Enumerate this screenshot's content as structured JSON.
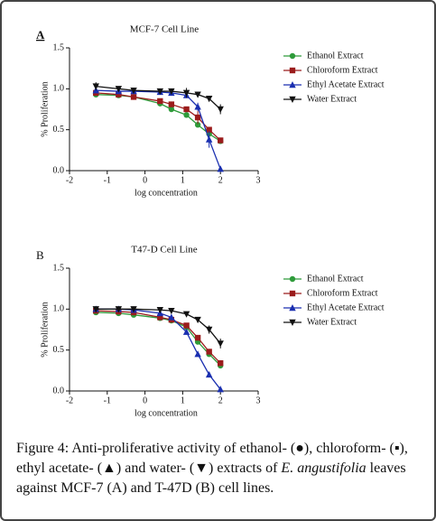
{
  "chart_data": [
    {
      "type": "line",
      "panel_label": "A",
      "title": "MCF-7 Cell Line",
      "xlabel": "log concentration",
      "ylabel": "% Proliferation",
      "x": [
        -1.3,
        -0.7,
        -0.3,
        0.4,
        0.7,
        1.1,
        1.4,
        1.7,
        2.0
      ],
      "xlim": [
        -2,
        3
      ],
      "xticks": [
        -2,
        -1,
        0,
        1,
        2,
        3
      ],
      "ylim": [
        0,
        1.5
      ],
      "yticks": [
        {
          "value": 0,
          "label": "0.0"
        },
        0.5,
        {
          "value": 1,
          "label": "1.0"
        },
        1.5
      ],
      "series": [
        {
          "name": "Ethanol Extract",
          "color": "#2e9b3a",
          "marker": "circle",
          "values": [
            0.93,
            0.92,
            0.9,
            0.82,
            0.75,
            0.68,
            0.56,
            0.45,
            0.36
          ],
          "errors": [
            0.02,
            0.02,
            0.02,
            0.02,
            0.02,
            0.03,
            0.03,
            0.03,
            0.02
          ]
        },
        {
          "name": "Chloroform Extract",
          "color": "#9b1c1c",
          "marker": "square",
          "values": [
            0.95,
            0.93,
            0.9,
            0.85,
            0.81,
            0.75,
            0.65,
            0.5,
            0.37
          ],
          "errors": [
            0.02,
            0.02,
            0.02,
            0.02,
            0.02,
            0.03,
            0.08,
            0.03,
            0.02
          ]
        },
        {
          "name": "Ethyl Acetate Extract",
          "color": "#1a2fb0",
          "marker": "triangle-up",
          "values": [
            0.98,
            0.97,
            0.97,
            0.96,
            0.95,
            0.92,
            0.78,
            0.38,
            0.02
          ],
          "errors": [
            0.02,
            0.02,
            0.02,
            0.02,
            0.02,
            0.03,
            0.05,
            0.1,
            0.01
          ]
        },
        {
          "name": "Water Extract",
          "color": "#111111",
          "marker": "triangle-down",
          "values": [
            1.03,
            1.0,
            0.98,
            0.97,
            0.97,
            0.95,
            0.93,
            0.88,
            0.75
          ],
          "errors": [
            0.05,
            0.02,
            0.02,
            0.02,
            0.02,
            0.06,
            0.03,
            0.03,
            0.06
          ]
        }
      ]
    },
    {
      "type": "line",
      "panel_label": "B",
      "title": "T47-D Cell Line",
      "xlabel": "log concentration",
      "ylabel": "% Proliferation",
      "x": [
        -1.3,
        -0.7,
        -0.3,
        0.4,
        0.7,
        1.1,
        1.4,
        1.7,
        2.0
      ],
      "xlim": [
        -2,
        3
      ],
      "xticks": [
        -2,
        -1,
        0,
        1,
        2,
        3
      ],
      "ylim": [
        0,
        1.5
      ],
      "yticks": [
        {
          "value": 0,
          "label": "0.0"
        },
        0.5,
        {
          "value": 1,
          "label": "1.0"
        },
        1.5
      ],
      "series": [
        {
          "name": "Ethanol Extract",
          "color": "#2e9b3a",
          "marker": "circle",
          "values": [
            0.96,
            0.95,
            0.93,
            0.89,
            0.86,
            0.78,
            0.6,
            0.45,
            0.31
          ],
          "errors": [
            0.02,
            0.02,
            0.02,
            0.02,
            0.02,
            0.02,
            0.03,
            0.03,
            0.02
          ]
        },
        {
          "name": "Chloroform Extract",
          "color": "#9b1c1c",
          "marker": "square",
          "values": [
            0.98,
            0.97,
            0.96,
            0.9,
            0.87,
            0.8,
            0.65,
            0.48,
            0.34
          ],
          "errors": [
            0.02,
            0.02,
            0.02,
            0.02,
            0.02,
            0.02,
            0.03,
            0.03,
            0.02
          ]
        },
        {
          "name": "Ethyl Acetate Extract",
          "color": "#1a2fb0",
          "marker": "triangle-up",
          "values": [
            1.0,
            1.0,
            0.99,
            0.95,
            0.9,
            0.72,
            0.45,
            0.2,
            0.02
          ],
          "errors": [
            0.02,
            0.02,
            0.02,
            0.02,
            0.02,
            0.02,
            0.02,
            0.03,
            0.01
          ]
        },
        {
          "name": "Water Extract",
          "color": "#111111",
          "marker": "triangle-down",
          "values": [
            1.0,
            1.0,
            1.0,
            0.99,
            0.98,
            0.94,
            0.87,
            0.75,
            0.58
          ],
          "errors": [
            0.02,
            0.02,
            0.02,
            0.03,
            0.03,
            0.03,
            0.03,
            0.05,
            0.06
          ]
        }
      ]
    }
  ],
  "caption": {
    "label": "Figure 4:",
    "text_before": "Anti-proliferative activity of ethanol- (●), chloroform- (▪), ethyl acetate- (▲) and water- (▼) extracts of",
    "species": "E. angustifolia",
    "text_after": "leaves against MCF-7 (A) and T-47D (B) cell lines."
  }
}
